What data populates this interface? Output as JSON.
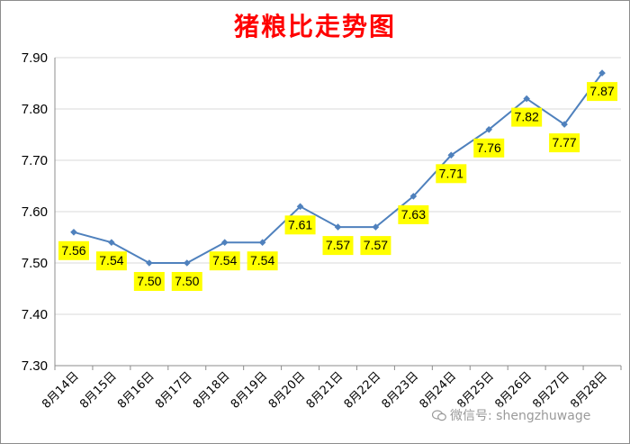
{
  "chart_data": {
    "type": "line",
    "title": "猪粮比走势图",
    "xlabel": "",
    "ylabel": "",
    "categories": [
      "8月14日",
      "8月15日",
      "8月16日",
      "8月17日",
      "8月18日",
      "8月19日",
      "8月20日",
      "8月21日",
      "8月22日",
      "8月23日",
      "8月24日",
      "8月25日",
      "8月26日",
      "8月27日",
      "8月28日"
    ],
    "values": [
      7.56,
      7.54,
      7.5,
      7.5,
      7.54,
      7.54,
      7.61,
      7.57,
      7.57,
      7.63,
      7.71,
      7.76,
      7.82,
      7.77,
      7.87
    ],
    "data_labels": [
      "7.56",
      "7.54",
      "7.50",
      "7.50",
      "7.54",
      "7.54",
      "7.61",
      "7.57",
      "7.57",
      "7.63",
      "7.71",
      "7.76",
      "7.82",
      "7.77",
      "7.87"
    ],
    "ylim": [
      7.3,
      7.9
    ],
    "yticks": [
      "7.30",
      "7.40",
      "7.50",
      "7.60",
      "7.70",
      "7.80",
      "7.90"
    ],
    "grid": true,
    "colors": {
      "line": "#4f81bd",
      "label_bg": "#ffff00",
      "title": "#ff0000",
      "grid": "#d9d9d9"
    }
  },
  "watermark": {
    "text": "微信号: shengzhuwage",
    "icon": "wechat-icon"
  }
}
